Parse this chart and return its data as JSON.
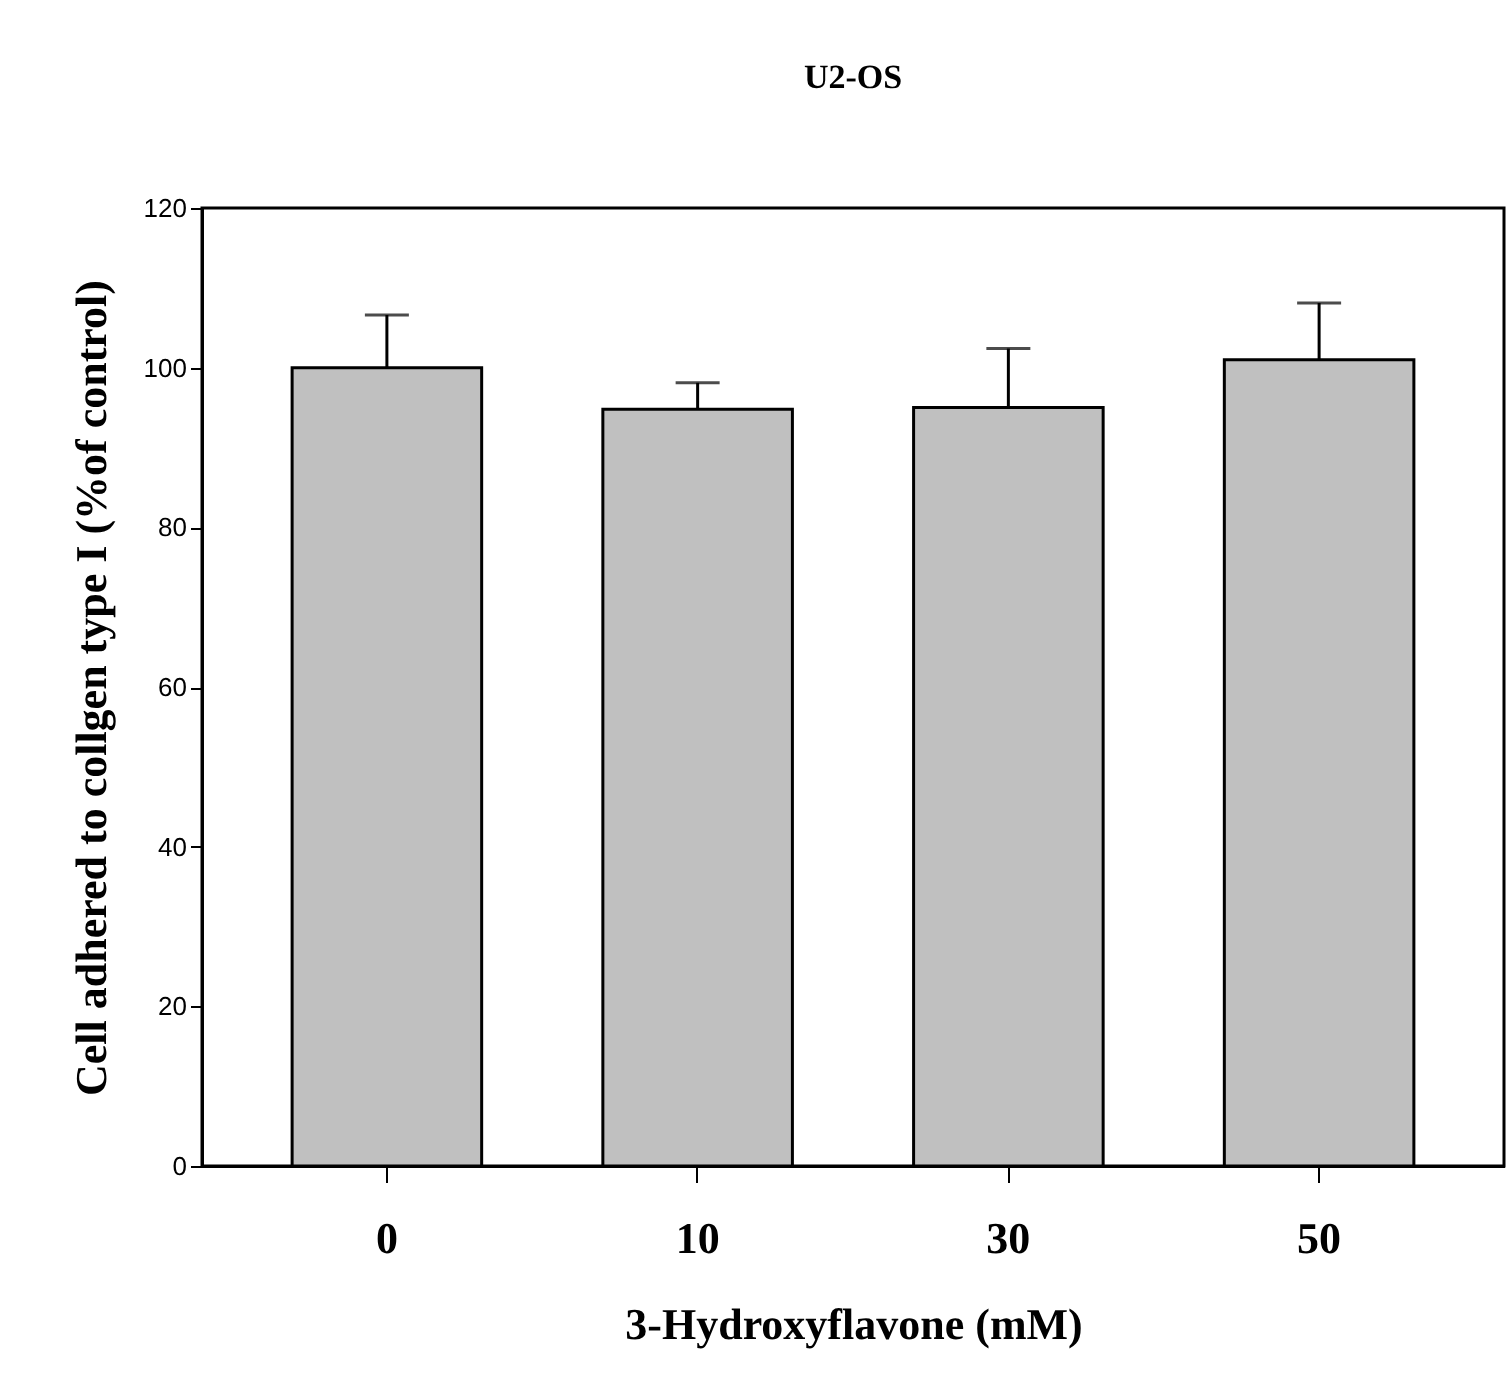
{
  "chart_data": {
    "type": "bar",
    "title": "U2-OS",
    "xlabel": "3-Hydroxyflavone (mM)",
    "ylabel": "Cell adhered to collgen type I (%of control)",
    "categories": [
      "0",
      "10",
      "30",
      "50"
    ],
    "values": [
      100,
      94.8,
      95,
      101
    ],
    "errors": [
      [
        100,
        106.6
      ],
      [
        94.8,
        98.1
      ],
      [
        95,
        102.4
      ],
      [
        101,
        108.1
      ]
    ],
    "color": "#c0c0c0",
    "ylim": [
      0,
      120
    ],
    "yticks": [
      0,
      20,
      40,
      60,
      80,
      100,
      120
    ]
  }
}
